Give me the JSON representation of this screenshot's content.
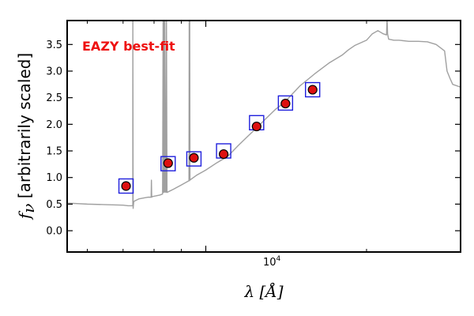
{
  "chart_data": {
    "type": "scatter",
    "annotation": "EAZY best-fit",
    "ylabel_prefix": "f",
    "ylabel_sub": "ν",
    "ylabel_text": " [arbitrarily scaled]",
    "xlabel": "λ [Å]",
    "xscale": "log",
    "xlim": [
      5500,
      30000
    ],
    "ylim": [
      -0.4,
      3.95
    ],
    "x_tick_label": {
      "value": 10000,
      "base": "10",
      "exp": "4"
    },
    "y_ticks": [
      "0.0",
      "0.5",
      "1.0",
      "1.5",
      "2.0",
      "2.5",
      "3.0",
      "3.5"
    ],
    "colors": {
      "spectrum": "#a0a0a0",
      "model": "#1f1fdd",
      "observed": "#dd1010",
      "annotation": "#ee1111"
    },
    "model_photometry": {
      "x": [
        7090,
        8500,
        9500,
        10800,
        12450,
        14100,
        15850
      ],
      "y": [
        0.84,
        1.26,
        1.35,
        1.5,
        2.03,
        2.4,
        2.65
      ]
    },
    "observed_photometry": {
      "x": [
        7090,
        8500,
        9500,
        10800,
        12450,
        14100,
        15850
      ],
      "y": [
        0.84,
        1.27,
        1.37,
        1.44,
        1.96,
        2.39,
        2.65
      ],
      "yerr": [
        0.02,
        0.03,
        0.03,
        0.03,
        0.07,
        0.05,
        0.04
      ]
    },
    "spectrum": {
      "x": [
        5500,
        6000,
        6500,
        7000,
        7150,
        7300,
        7301,
        7310,
        7330,
        7500,
        7800,
        7900,
        7910,
        7920,
        7930,
        8200,
        8300,
        8320,
        8330,
        8340,
        8360,
        8380,
        8400,
        8420,
        8440,
        8460,
        8700,
        9000,
        9300,
        9310,
        9320,
        9330,
        9340,
        9360,
        9600,
        10000,
        10500,
        11000,
        11500,
        12000,
        12500,
        13000,
        13500,
        14000,
        15000,
        16000,
        17000,
        18000,
        18500,
        19000,
        20000,
        20500,
        21000,
        21500,
        21800,
        21850,
        21900,
        22000,
        22500,
        23000,
        24000,
        25000,
        26000,
        27000,
        28000,
        28300,
        28700,
        29000,
        30000
      ],
      "y": [
        0.52,
        0.5,
        0.49,
        0.48,
        0.47,
        0.47,
        4.0,
        0.42,
        0.55,
        0.6,
        0.63,
        0.63,
        0.95,
        0.63,
        0.64,
        0.67,
        0.69,
        4.0,
        0.72,
        4.0,
        0.72,
        4.0,
        0.73,
        0.72,
        4.0,
        0.72,
        0.78,
        0.86,
        0.94,
        4.0,
        0.94,
        4.0,
        0.95,
        0.96,
        1.04,
        1.14,
        1.28,
        1.4,
        1.6,
        1.78,
        1.95,
        2.12,
        2.28,
        2.4,
        2.72,
        2.95,
        3.15,
        3.3,
        3.4,
        3.48,
        3.58,
        3.7,
        3.76,
        3.7,
        3.68,
        4.0,
        3.7,
        3.6,
        3.58,
        3.58,
        3.56,
        3.56,
        3.55,
        3.5,
        3.38,
        3.0,
        2.85,
        2.75,
        2.7
      ]
    }
  }
}
